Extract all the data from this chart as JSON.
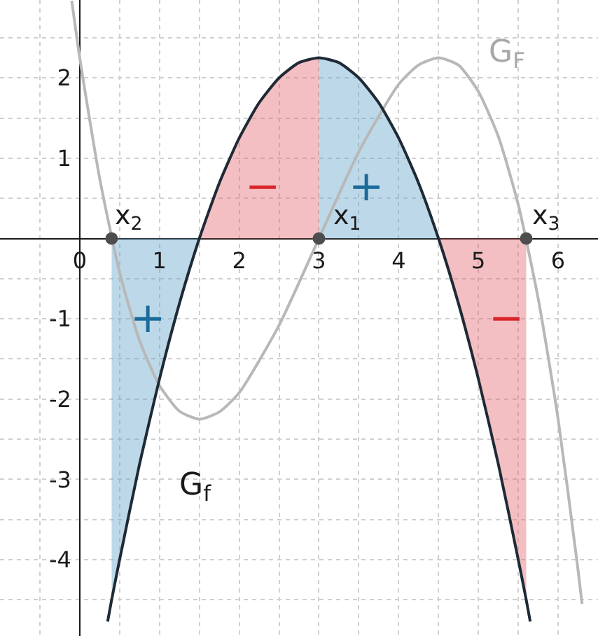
{
  "chart_data": {
    "type": "line",
    "xlim": [
      -1,
      6.5
    ],
    "ylim": [
      -4.95,
      2.97
    ],
    "xticks": [
      {
        "value": -0.5,
        "label": null
      },
      {
        "value": 0,
        "label": "0"
      },
      {
        "value": 0.5,
        "label": null
      },
      1,
      {
        "value": 1.5,
        "label": null
      },
      2,
      {
        "value": 2.5,
        "label": null
      },
      3,
      {
        "value": 3.5,
        "label": null
      },
      4,
      {
        "value": 4.5,
        "label": null
      },
      5,
      {
        "value": 5.5,
        "label": null
      },
      6
    ],
    "yticks": [
      {
        "value": -4.5,
        "label": null
      },
      -4,
      {
        "value": -3.5,
        "label": null
      },
      -3,
      {
        "value": -2.5,
        "label": null
      },
      -2,
      {
        "value": -1.5,
        "label": null
      },
      -1,
      {
        "value": -0.5,
        "label": null
      },
      {
        "value": 0,
        "label": null
      },
      {
        "value": 0.5,
        "label": null
      },
      1,
      {
        "value": 1.5,
        "label": null
      },
      2,
      {
        "value": 2.5,
        "label": null
      }
    ],
    "grid": true,
    "series": [
      {
        "type": "area",
        "color": "#5aa0c8",
        "x": [
          0.4,
          0.5,
          0.75,
          1.0,
          1.25,
          1.5
        ],
        "values": [
          -4.5,
          -4.0,
          -2.81,
          -1.75,
          -0.81,
          0
        ]
      },
      {
        "type": "area",
        "color": "#e06066",
        "x": [
          1.5,
          1.75,
          2.0,
          2.25,
          2.5,
          2.75,
          3.0
        ],
        "values": [
          0,
          0.69,
          1.25,
          1.69,
          2.0,
          2.19,
          2.25
        ]
      },
      {
        "type": "area",
        "color": "#5aa0c8",
        "x": [
          3.0,
          3.25,
          3.5,
          3.75,
          4.0,
          4.25,
          4.5
        ],
        "values": [
          2.25,
          2.19,
          2.0,
          1.69,
          1.25,
          0.69,
          0
        ]
      },
      {
        "type": "area",
        "color": "#e06066",
        "x": [
          4.5,
          4.75,
          5.0,
          5.25,
          5.5,
          5.6
        ],
        "values": [
          0,
          -0.81,
          -1.75,
          -2.81,
          -4.0,
          -4.5
        ]
      },
      {
        "color": "#b8b8b8",
        "x": [
          -0.1,
          0,
          0.25,
          0.5,
          0.75,
          1.0,
          1.25,
          1.5,
          1.75,
          2.0,
          2.5,
          3.0,
          3.5,
          4.0,
          4.25,
          4.5,
          4.75,
          5.0,
          5.25,
          5.5,
          5.75,
          6.0,
          6.25,
          6.3
        ],
        "values": [
          2.96,
          2.25,
          0.75,
          -0.42,
          -1.27,
          -1.83,
          -2.15,
          -2.25,
          -2.16,
          -1.92,
          -1.08,
          0,
          1.08,
          1.92,
          2.16,
          2.25,
          2.16,
          1.83,
          1.27,
          0.42,
          -0.75,
          -2.25,
          -4.13,
          -4.55
        ]
      },
      {
        "color": "#1f2a36",
        "x": [
          0.35,
          0.4,
          0.5,
          0.75,
          1.0,
          1.25,
          1.5,
          1.75,
          2.0,
          2.25,
          2.5,
          2.75,
          3.0,
          3.25,
          3.5,
          3.75,
          4.0,
          4.25,
          4.5,
          4.75,
          5.0,
          5.25,
          5.5,
          5.6,
          5.65
        ],
        "values": [
          -4.77,
          -4.5,
          -4.0,
          -2.81,
          -1.75,
          -0.81,
          0,
          0.69,
          1.25,
          1.69,
          2.0,
          2.19,
          2.25,
          2.19,
          2.0,
          1.69,
          1.25,
          0.69,
          0,
          -0.81,
          -1.75,
          -2.81,
          -4.0,
          -4.5,
          -4.77
        ]
      },
      {
        "type": "scatter",
        "color": "#4d4d4d",
        "marker": "circle",
        "x": [
          0.4,
          3.0,
          5.6
        ],
        "values": [
          0,
          0,
          0
        ]
      }
    ],
    "annotations": [
      "x$_{2}$",
      "x$_{1}$",
      "x$_{3}$",
      "+",
      "−",
      "+",
      "−",
      "G$_{f}$",
      "G$_{F}$"
    ]
  }
}
